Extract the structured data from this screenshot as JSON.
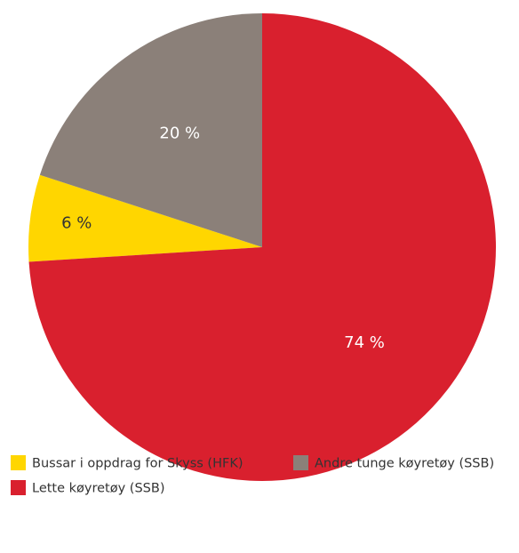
{
  "chart_data": {
    "type": "pie",
    "categories": [
      "Bussar i oppdrag for Skyss (HFK)",
      "Andre tunge køyretøy (SSB)",
      "Lette køyretøy (SSB)"
    ],
    "values": [
      6,
      20,
      74
    ],
    "value_labels": [
      "6 %",
      "20 %",
      "74 %"
    ],
    "colors": [
      "#ffd600",
      "#8b8079",
      "#d9202e"
    ]
  }
}
